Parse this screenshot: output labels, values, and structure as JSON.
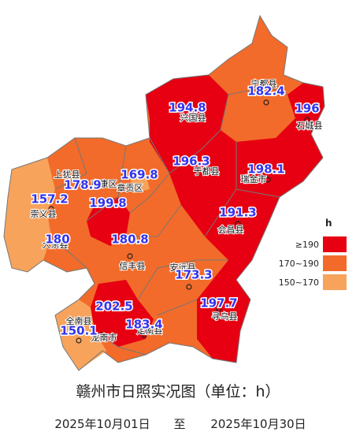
{
  "map": {
    "title": "赣州市日照实况图（单位：h）",
    "period": {
      "start": "2025年10月01日",
      "sep": "至",
      "end": "2025年10月30日"
    },
    "legend": {
      "title": "h",
      "items": [
        {
          "label": "≥190",
          "color": "#e60012"
        },
        {
          "label": "170~190",
          "color": "#f26b2a"
        },
        {
          "label": "150~170",
          "color": "#f7a35c"
        }
      ]
    },
    "place_names": [
      "兴国县",
      "宁都县",
      "石城县",
      "于都县",
      "瑞金市",
      "章贡区",
      "上犹县",
      "南康区",
      "崇义县",
      "会昌县",
      "大余县",
      "信丰县",
      "安远县",
      "寻乌县",
      "定南县",
      "全南县",
      "龙南市"
    ],
    "values": [
      194.8,
      182.4,
      196,
      196.3,
      198.1,
      169.8,
      178.9,
      157.2,
      199.8,
      191.3,
      180,
      180.8,
      173.3,
      197.7,
      202.5,
      183.4,
      150.1
    ]
  }
}
